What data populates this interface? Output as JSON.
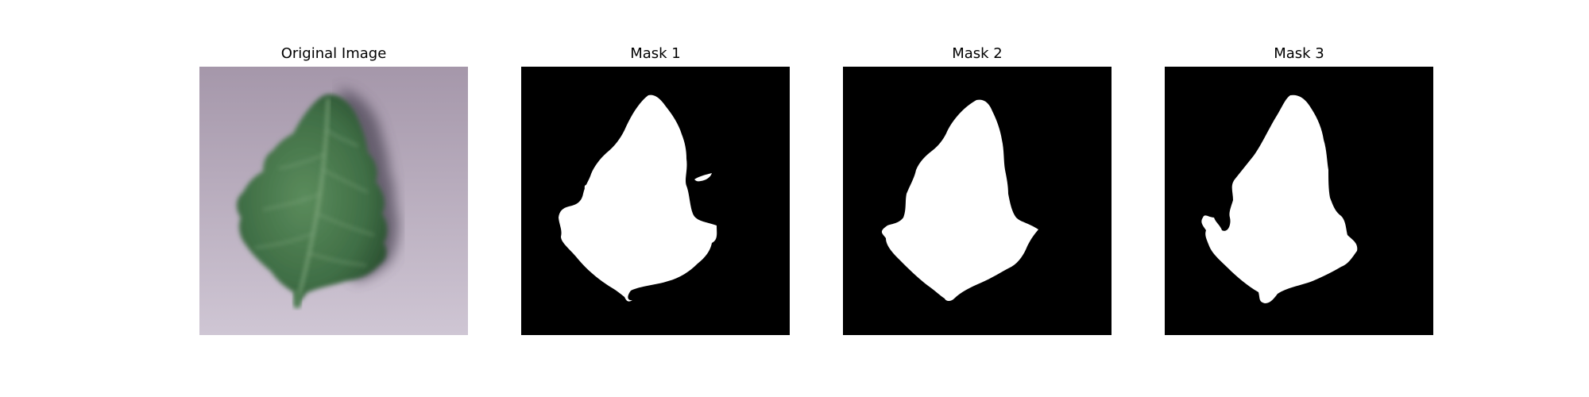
{
  "figure": {
    "panels": [
      {
        "title": "Original Image",
        "kind": "photo"
      },
      {
        "title": "Mask 1",
        "kind": "mask"
      },
      {
        "title": "Mask 2",
        "kind": "mask"
      },
      {
        "title": "Mask 3",
        "kind": "mask"
      }
    ],
    "colors": {
      "background": "#ffffff",
      "mask_background": "#000000",
      "mask_foreground": "#ffffff",
      "photo_background": "#b9aebf",
      "leaf_green": "#4f7d52",
      "leaf_dark": "#2f5a36",
      "leaf_vein": "#8fb48a",
      "shadow": "#5b5565"
    }
  }
}
